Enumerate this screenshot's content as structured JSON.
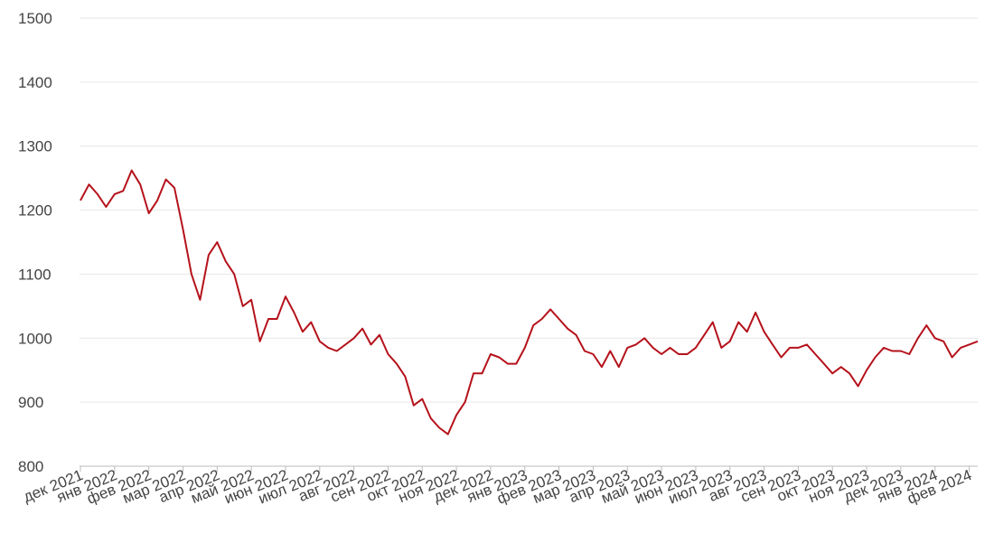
{
  "chart_data": {
    "type": "line",
    "categories": [
      "дек 2021",
      null,
      null,
      null,
      "янв 2022",
      null,
      null,
      null,
      "фев 2022",
      null,
      null,
      null,
      "мар 2022",
      null,
      null,
      null,
      "апр 2022",
      null,
      null,
      null,
      "май 2022",
      null,
      null,
      null,
      "июн 2022",
      null,
      null,
      null,
      "июл 2022",
      null,
      null,
      null,
      "авг 2022",
      null,
      null,
      null,
      "сен 2022",
      null,
      null,
      null,
      "окт 2022",
      null,
      null,
      null,
      "ноя 2022",
      null,
      null,
      null,
      "дек 2022",
      null,
      null,
      null,
      "янв 2023",
      null,
      null,
      null,
      "фев 2023",
      null,
      null,
      null,
      "мар 2023",
      null,
      null,
      null,
      "апр 2023",
      null,
      null,
      null,
      "май 2023",
      null,
      null,
      null,
      "июн 2023",
      null,
      null,
      null,
      "июл 2023",
      null,
      null,
      null,
      "авг 2023",
      null,
      null,
      null,
      "сен 2023",
      null,
      null,
      null,
      "окт 2023",
      null,
      null,
      null,
      "ноя 2023",
      null,
      null,
      null,
      "дек 2023",
      null,
      null,
      null,
      "янв 2024",
      null,
      null,
      null,
      "фев 2024",
      null
    ],
    "series": [
      {
        "color": "#b5121b",
        "values": [
          1215,
          1240,
          1225,
          1205,
          1225,
          1230,
          1262,
          1240,
          1195,
          1215,
          1248,
          1235,
          1170,
          1100,
          1060,
          1130,
          1150,
          1120,
          1100,
          1050,
          1060,
          995,
          1030,
          1030,
          1065,
          1040,
          1010,
          1025,
          995,
          985,
          980,
          990,
          1000,
          1015,
          990,
          1005,
          975,
          960,
          940,
          895,
          905,
          875,
          860,
          850,
          880,
          900,
          945,
          945,
          975,
          970,
          960,
          960,
          985,
          1020,
          1030,
          1045,
          1030,
          1015,
          1005,
          980,
          975,
          955,
          980,
          955,
          985,
          990,
          1000,
          985,
          975,
          985,
          975,
          975,
          985,
          1005,
          1025,
          985,
          995,
          1025,
          1010,
          1040,
          1010,
          990,
          970,
          985,
          985,
          990,
          975,
          960,
          945,
          955,
          945,
          925,
          950,
          970,
          985,
          980,
          980,
          975,
          1000,
          1020,
          1000,
          995,
          970,
          985,
          990,
          995
        ]
      }
    ],
    "ylim": [
      800,
      1500
    ],
    "yticks": [
      800,
      900,
      1000,
      1100,
      1200,
      1300,
      1400,
      1500
    ],
    "grid": true
  }
}
